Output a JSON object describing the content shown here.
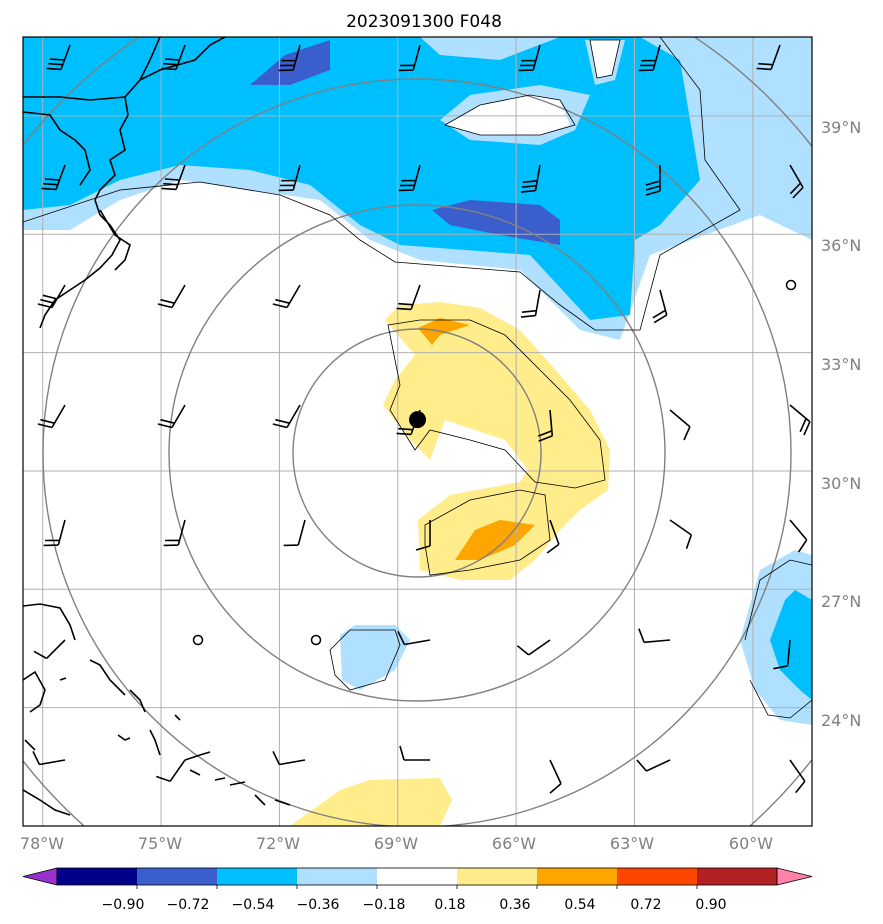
{
  "title": "2023091300 F048",
  "map": {
    "lon_range": [
      -78.5,
      -58.5
    ],
    "lat_range": [
      21,
      41
    ],
    "lon_labels": [
      "78°W",
      "75°W",
      "72°W",
      "69°W",
      "66°W",
      "63°W",
      "60°W"
    ],
    "lon_values": [
      -78,
      -75,
      -72,
      -69,
      -66,
      -63,
      -60
    ],
    "lat_labels": [
      "39°N",
      "36°N",
      "33°N",
      "30°N",
      "27°N",
      "24°N"
    ],
    "lat_values": [
      39,
      36,
      33,
      30,
      27,
      24
    ],
    "storm_center": {
      "lon": -68.5,
      "lat": 31.3
    }
  },
  "colorbar": {
    "ticks": [
      "−0.90",
      "−0.72",
      "−0.54",
      "−0.36",
      "−0.18",
      "0.18",
      "0.36",
      "0.54",
      "0.72",
      "0.90"
    ],
    "colors": [
      "#9932cc",
      "#00008b",
      "#3a5fcd",
      "#00bfff",
      "#b0e0ff",
      "#ffffff",
      "#ffec8b",
      "#ffa500",
      "#ff4500",
      "#b22222",
      "#ff82ab"
    ]
  },
  "colors": {
    "grid": "#b0b0b0",
    "range_rings": "#808080",
    "coast": "#000000"
  }
}
